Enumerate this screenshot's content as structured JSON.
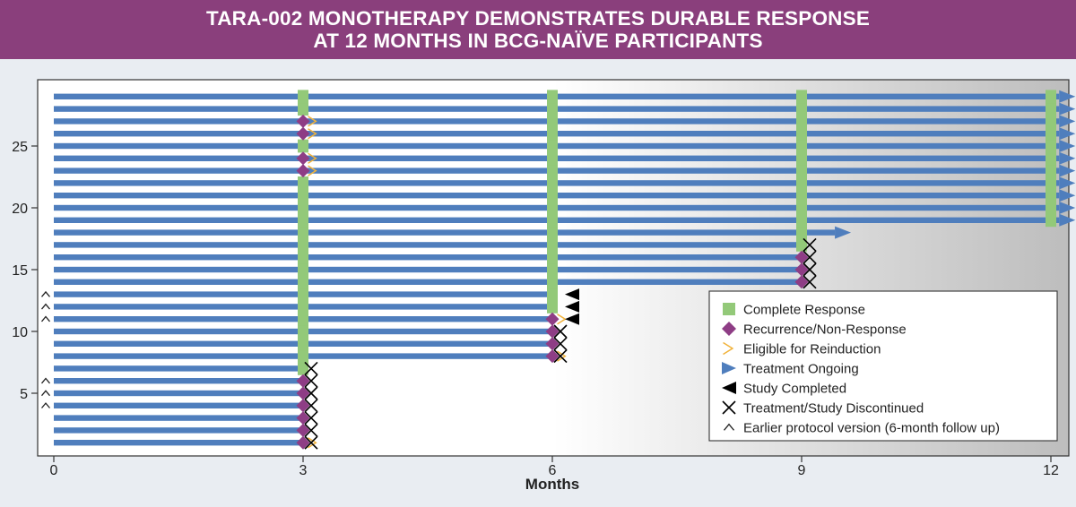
{
  "header": {
    "title_line1": "TARA-002 MONOTHERAPY DEMONSTRATES DURABLE RESPONSE",
    "title_line2": "AT 12 MONTHS IN BCG-NAÏVE PARTICIPANTS"
  },
  "colors": {
    "banner": "#8a3f7c",
    "bar": "#4f7ebd",
    "complete_response": "#93c979",
    "recurrence": "#8e3d85",
    "reinduction": "#f1b23a",
    "ongoing": "#4f7ebd",
    "completed": "#000000",
    "discontinued": "#000000"
  },
  "chart_data": {
    "type": "swimmer",
    "title": "TARA-002 MONOTHERAPY DEMONSTRATES DURABLE RESPONSE AT 12 MONTHS IN BCG-NAÏVE PARTICIPANTS",
    "xlabel": "Months",
    "ylabel": "",
    "xlim": [
      0,
      12
    ],
    "ylim": [
      0,
      30
    ],
    "xticks": [
      0,
      3,
      6,
      9,
      12
    ],
    "yticks": [
      5,
      10,
      15,
      20,
      25
    ],
    "grid": false,
    "legend_position": "bottom-right",
    "legend": [
      {
        "key": "complete_response",
        "label": "Complete Response",
        "symbol": "square"
      },
      {
        "key": "recurrence",
        "label": "Recurrence/Non-Response",
        "symbol": "diamond"
      },
      {
        "key": "reinduction",
        "label": "Eligible for Reinduction",
        "symbol": "chevron"
      },
      {
        "key": "ongoing",
        "label": "Treatment Ongoing",
        "symbol": "right-triangle"
      },
      {
        "key": "completed",
        "label": "Study Completed",
        "symbol": "left-triangle"
      },
      {
        "key": "discontinued",
        "label": "Treatment/Study Discontinued",
        "symbol": "x"
      },
      {
        "key": "earlier_protocol",
        "label": "Earlier protocol version (6-month follow up)",
        "symbol": "caret"
      }
    ],
    "participants": [
      {
        "id": 1,
        "end": 3,
        "cr": null,
        "recurrence": 3,
        "reinduction": true,
        "outcome": "discontinued",
        "earlier_protocol": false
      },
      {
        "id": 2,
        "end": 3,
        "cr": null,
        "recurrence": 3,
        "reinduction": false,
        "outcome": "discontinued",
        "earlier_protocol": false
      },
      {
        "id": 3,
        "end": 3,
        "cr": null,
        "recurrence": 3,
        "reinduction": false,
        "outcome": "discontinued",
        "earlier_protocol": false
      },
      {
        "id": 4,
        "end": 3,
        "cr": null,
        "recurrence": 3,
        "reinduction": false,
        "outcome": "discontinued",
        "earlier_protocol": true
      },
      {
        "id": 5,
        "end": 3,
        "cr": null,
        "recurrence": 3,
        "reinduction": false,
        "outcome": "discontinued",
        "earlier_protocol": true
      },
      {
        "id": 6,
        "end": 3,
        "cr": null,
        "recurrence": 3,
        "reinduction": false,
        "outcome": "discontinued",
        "earlier_protocol": true
      },
      {
        "id": 7,
        "end": 3,
        "cr": [
          3,
          3
        ],
        "recurrence": null,
        "reinduction": false,
        "outcome": "discontinued",
        "earlier_protocol": false
      },
      {
        "id": 8,
        "end": 6,
        "cr": [
          3,
          3
        ],
        "recurrence": 6,
        "reinduction": true,
        "outcome": "discontinued",
        "earlier_protocol": false
      },
      {
        "id": 9,
        "end": 6,
        "cr": [
          3,
          3
        ],
        "recurrence": 6,
        "reinduction": false,
        "outcome": "discontinued",
        "earlier_protocol": false
      },
      {
        "id": 10,
        "end": 6,
        "cr": [
          3,
          3
        ],
        "recurrence": 6,
        "reinduction": false,
        "outcome": "discontinued",
        "earlier_protocol": false
      },
      {
        "id": 11,
        "end": 6,
        "cr": [
          3,
          3
        ],
        "recurrence": 6,
        "reinduction": true,
        "outcome": "completed",
        "earlier_protocol": true
      },
      {
        "id": 12,
        "end": 6,
        "cr": [
          3,
          6
        ],
        "recurrence": null,
        "reinduction": false,
        "outcome": "completed",
        "earlier_protocol": true
      },
      {
        "id": 13,
        "end": 6,
        "cr": [
          3,
          6
        ],
        "recurrence": null,
        "reinduction": false,
        "outcome": "completed",
        "earlier_protocol": true
      },
      {
        "id": 14,
        "end": 9,
        "cr": [
          3,
          6
        ],
        "recurrence": 9,
        "reinduction": false,
        "outcome": "discontinued",
        "earlier_protocol": false
      },
      {
        "id": 15,
        "end": 9,
        "cr": [
          3,
          6
        ],
        "recurrence": 9,
        "reinduction": false,
        "outcome": "discontinued",
        "earlier_protocol": false
      },
      {
        "id": 16,
        "end": 9,
        "cr": [
          3,
          6
        ],
        "recurrence": 9,
        "reinduction": false,
        "outcome": "discontinued",
        "earlier_protocol": false
      },
      {
        "id": 17,
        "end": 9,
        "cr": [
          3,
          9
        ],
        "recurrence": null,
        "reinduction": false,
        "outcome": "discontinued",
        "earlier_protocol": false
      },
      {
        "id": 18,
        "end": 9.4,
        "cr": [
          3,
          9
        ],
        "recurrence": null,
        "reinduction": false,
        "outcome": "ongoing",
        "earlier_protocol": false
      },
      {
        "id": 19,
        "end": 12.1,
        "cr": [
          3,
          12
        ],
        "recurrence": null,
        "reinduction": false,
        "outcome": "ongoing",
        "earlier_protocol": false
      },
      {
        "id": 20,
        "end": 12.1,
        "cr": [
          3,
          12
        ],
        "recurrence": null,
        "reinduction": false,
        "outcome": "ongoing",
        "earlier_protocol": false
      },
      {
        "id": 21,
        "end": 12.1,
        "cr": [
          3,
          12
        ],
        "recurrence": null,
        "reinduction": false,
        "outcome": "ongoing",
        "earlier_protocol": false
      },
      {
        "id": 22,
        "end": 12.1,
        "cr": [
          3,
          12
        ],
        "recurrence": null,
        "reinduction": false,
        "outcome": "ongoing",
        "earlier_protocol": false
      },
      {
        "id": 23,
        "end": 12.1,
        "cr": [
          6,
          12
        ],
        "recurrence": 3,
        "reinduction": true,
        "outcome": "ongoing",
        "earlier_protocol": false
      },
      {
        "id": 24,
        "end": 12.1,
        "cr": [
          6,
          12
        ],
        "recurrence": 3,
        "reinduction": true,
        "outcome": "ongoing",
        "earlier_protocol": false
      },
      {
        "id": 25,
        "end": 12.1,
        "cr": [
          3,
          12
        ],
        "recurrence": null,
        "reinduction": false,
        "outcome": "ongoing",
        "earlier_protocol": false
      },
      {
        "id": 26,
        "end": 12.1,
        "cr": [
          6,
          12
        ],
        "recurrence": 3,
        "reinduction": true,
        "outcome": "ongoing",
        "earlier_protocol": false
      },
      {
        "id": 27,
        "end": 12.1,
        "cr": [
          6,
          12
        ],
        "recurrence": 3,
        "reinduction": true,
        "outcome": "ongoing",
        "earlier_protocol": false
      },
      {
        "id": 28,
        "end": 12.1,
        "cr": [
          3,
          12
        ],
        "recurrence": null,
        "reinduction": false,
        "outcome": "ongoing",
        "earlier_protocol": false
      },
      {
        "id": 29,
        "end": 12.1,
        "cr": [
          3,
          12
        ],
        "recurrence": null,
        "reinduction": false,
        "outcome": "ongoing",
        "earlier_protocol": false
      }
    ]
  }
}
